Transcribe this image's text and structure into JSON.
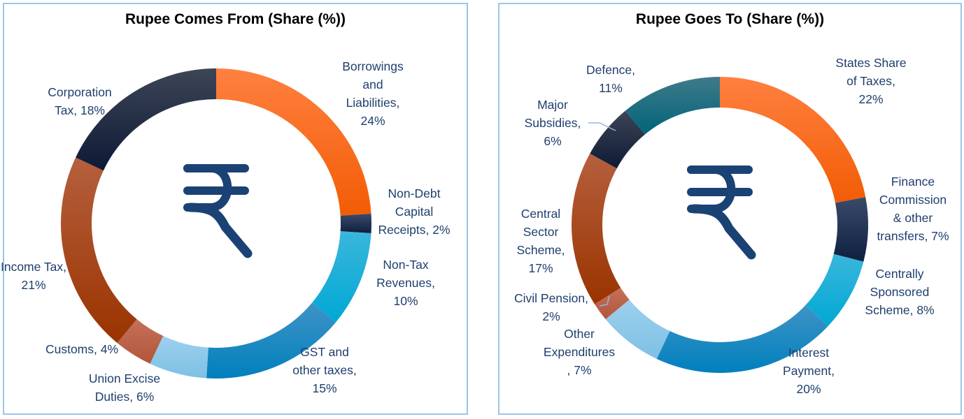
{
  "chart_data": [
    {
      "type": "pie",
      "subtype": "donut",
      "title": "Rupee Comes From (Share (%))",
      "center_icon": "rupee-icon",
      "unit": "%",
      "slices": [
        {
          "name": "Borrowings and Liabilities",
          "value": 24,
          "label_lines": [
            "Borrowings",
            "and",
            "Liabilities,",
            "24%"
          ],
          "color_top": "#ff8040",
          "color_bottom": "#f25c05"
        },
        {
          "name": "Non-Debt Capital Receipts",
          "value": 2,
          "label_lines": [
            "Non-Debt",
            "Capital",
            "Receipts, 2%"
          ],
          "color_top": "#3a4a6a",
          "color_bottom": "#0f1f40"
        },
        {
          "name": "Non-Tax Revenues",
          "value": 10,
          "label_lines": [
            "Non-Tax",
            "Revenues,",
            "10%"
          ],
          "color_top": "#3ab6dc",
          "color_bottom": "#00a8d4"
        },
        {
          "name": "GST and other taxes",
          "value": 15,
          "label_lines": [
            "GST and",
            "other taxes,",
            "15%"
          ],
          "color_top": "#3f93c6",
          "color_bottom": "#0080bd"
        },
        {
          "name": "Union Excise Duties",
          "value": 6,
          "label_lines": [
            "Union Excise",
            "Duties, 6%"
          ],
          "color_top": "#9dd0ee",
          "color_bottom": "#7ec0e4"
        },
        {
          "name": "Customs",
          "value": 4,
          "label_lines": [
            "Customs, 4%"
          ],
          "color_top": "#c57158",
          "color_bottom": "#b2553c"
        },
        {
          "name": "Income Tax",
          "value": 21,
          "label_lines": [
            "Income Tax,",
            "21%"
          ],
          "color_top": "#b5603e",
          "color_bottom": "#9a3300"
        },
        {
          "name": "Corporation Tax",
          "value": 18,
          "label_lines": [
            "Corporation",
            "Tax, 18%"
          ],
          "color_top": "#3d4556",
          "color_bottom": "#0d1a35"
        }
      ]
    },
    {
      "type": "pie",
      "subtype": "donut",
      "title": "Rupee Goes To (Share (%))",
      "center_icon": "rupee-icon",
      "unit": "%",
      "slices": [
        {
          "name": "States Share of Taxes",
          "value": 22,
          "label_lines": [
            "States Share",
            "of Taxes,",
            "22%"
          ],
          "color_top": "#ff8040",
          "color_bottom": "#f25c05"
        },
        {
          "name": "Finance Commission & other transfers",
          "value": 7,
          "label_lines": [
            "Finance",
            "Commission",
            "& other",
            "transfers, 7%"
          ],
          "color_top": "#3a4a6a",
          "color_bottom": "#0f1f40"
        },
        {
          "name": "Centrally Sponsored Scheme",
          "value": 8,
          "label_lines": [
            "Centrally",
            "Sponsored",
            "Scheme, 8%"
          ],
          "color_top": "#3ab6dc",
          "color_bottom": "#00a8d4"
        },
        {
          "name": "Interest Payment",
          "value": 20,
          "label_lines": [
            "Interest",
            "Payment,",
            "20%"
          ],
          "color_top": "#3f93c6",
          "color_bottom": "#0080bd"
        },
        {
          "name": "Other Expenditures",
          "value": 7,
          "label_lines": [
            "Other",
            "Expenditures",
            ", 7%"
          ],
          "color_top": "#9dd0ee",
          "color_bottom": "#7ec0e4"
        },
        {
          "name": "Civil Pension",
          "value": 2,
          "label_lines": [
            "Civil Pension,",
            "2%"
          ],
          "color_top": "#c57158",
          "color_bottom": "#b2553c"
        },
        {
          "name": "Central Sector Scheme",
          "value": 17,
          "label_lines": [
            "Central",
            "Sector",
            "Scheme,",
            "17%"
          ],
          "color_top": "#b5603e",
          "color_bottom": "#9a3300"
        },
        {
          "name": "Major Subsidies",
          "value": 6,
          "label_lines": [
            "Major",
            "Subsidies,",
            "6%"
          ],
          "color_top": "#3d4556",
          "color_bottom": "#0d1a35"
        },
        {
          "name": "Defence",
          "value": 11,
          "label_lines": [
            "Defence,",
            "11%"
          ],
          "color_top": "#3f7a8a",
          "color_bottom": "#006478"
        }
      ]
    }
  ],
  "icon_color": "#1a4275"
}
